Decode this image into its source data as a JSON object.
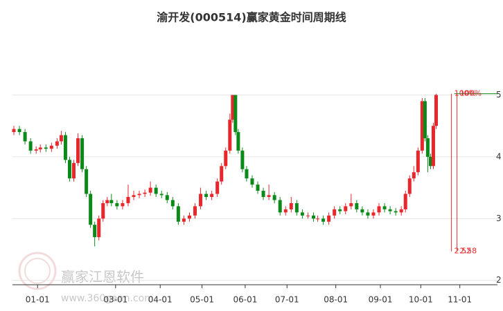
{
  "chart_data": {
    "type": "candlestick",
    "title": "渝开发(000514)赢家黄金时间周期线",
    "watermark": {
      "name": "赢家江恩软件",
      "url": "www.360gann.com"
    },
    "up_color": "#e8262b",
    "down_color": "#0b8a1a",
    "xlim": [
      -18,
      330
    ],
    "ylim": [
      1.93,
      6.0
    ],
    "xticks": [
      {
        "value": 0,
        "label": "01-01"
      },
      {
        "value": 56,
        "label": "03-01"
      },
      {
        "value": 88,
        "label": "04-01"
      },
      {
        "value": 118,
        "label": "05-01"
      },
      {
        "value": 149,
        "label": "06-01"
      },
      {
        "value": 179,
        "label": "07-01"
      },
      {
        "value": 214,
        "label": "08-01"
      },
      {
        "value": 246,
        "label": "09-01"
      },
      {
        "value": 275,
        "label": "10-01"
      },
      {
        "value": 303,
        "label": "11-01"
      }
    ],
    "yticks": [
      2,
      3,
      4,
      5
    ],
    "grid": true,
    "x": [
      -17,
      -13,
      -9,
      -5,
      -1,
      2,
      6,
      10,
      14,
      17,
      20,
      23,
      26,
      29,
      32,
      35,
      38,
      41,
      44,
      47,
      50,
      53,
      57,
      61,
      65,
      69,
      73,
      77,
      81,
      85,
      89,
      93,
      97,
      101,
      105,
      109,
      113,
      117,
      121,
      125,
      129,
      132,
      135,
      138,
      140,
      142,
      144,
      147,
      150,
      154,
      158,
      162,
      166,
      170,
      174,
      178,
      182,
      186,
      190,
      194,
      198,
      201,
      205,
      209,
      213,
      217,
      221,
      225,
      229,
      233,
      237,
      241,
      245,
      249,
      253,
      257,
      261,
      264,
      267,
      270,
      273,
      276,
      278,
      280,
      282,
      284,
      286
    ],
    "open": [
      4.4,
      4.45,
      4.4,
      4.25,
      4.1,
      4.12,
      4.15,
      4.13,
      4.18,
      4.25,
      4.35,
      3.95,
      3.65,
      3.9,
      4.3,
      3.8,
      3.4,
      2.9,
      2.7,
      3.0,
      3.25,
      3.3,
      3.25,
      3.2,
      3.25,
      3.35,
      3.38,
      3.4,
      3.42,
      3.5,
      3.4,
      3.38,
      3.3,
      3.2,
      2.95,
      3.0,
      3.05,
      3.2,
      3.4,
      3.35,
      3.4,
      3.6,
      3.85,
      4.1,
      4.6,
      5.0,
      4.4,
      4.1,
      3.8,
      3.65,
      3.55,
      3.45,
      3.35,
      3.38,
      3.3,
      3.1,
      3.15,
      3.25,
      3.1,
      3.05,
      3.05,
      3.0,
      3.0,
      2.95,
      3.05,
      3.15,
      3.12,
      3.2,
      3.25,
      3.15,
      3.1,
      3.05,
      3.1,
      3.2,
      3.15,
      3.12,
      3.1,
      3.15,
      3.4,
      3.65,
      3.75,
      4.1,
      4.9,
      4.3,
      4.0,
      3.85,
      4.5
    ],
    "high": [
      4.5,
      4.5,
      4.45,
      4.3,
      4.17,
      4.2,
      4.2,
      4.23,
      4.3,
      4.42,
      4.4,
      4.0,
      3.95,
      4.38,
      4.35,
      3.85,
      3.45,
      2.95,
      3.05,
      3.3,
      3.35,
      3.4,
      3.3,
      3.3,
      3.55,
      3.45,
      3.45,
      3.47,
      3.6,
      3.55,
      3.45,
      3.43,
      3.35,
      3.25,
      3.05,
      3.1,
      3.25,
      3.5,
      3.45,
      3.45,
      3.65,
      3.9,
      4.15,
      4.7,
      5.0,
      5.0,
      4.45,
      4.15,
      3.85,
      3.7,
      3.6,
      3.5,
      3.55,
      3.43,
      3.35,
      3.2,
      3.35,
      3.3,
      3.15,
      3.1,
      3.1,
      3.05,
      3.05,
      3.1,
      3.2,
      3.2,
      3.25,
      3.4,
      3.3,
      3.2,
      3.15,
      3.15,
      3.25,
      3.25,
      3.2,
      3.17,
      3.2,
      3.45,
      3.7,
      3.85,
      4.15,
      4.95,
      4.95,
      4.35,
      4.05,
      4.55,
      5.02
    ],
    "low": [
      4.35,
      4.35,
      4.2,
      4.05,
      4.05,
      4.07,
      4.08,
      4.08,
      4.13,
      4.2,
      3.9,
      3.6,
      3.6,
      3.85,
      3.75,
      3.35,
      2.85,
      2.55,
      2.65,
      2.95,
      3.2,
      3.2,
      3.15,
      3.15,
      3.2,
      3.3,
      3.33,
      3.35,
      3.37,
      3.35,
      3.33,
      3.25,
      3.15,
      2.9,
      2.9,
      2.95,
      3.0,
      3.15,
      3.3,
      3.3,
      3.35,
      3.55,
      3.8,
      4.05,
      4.55,
      4.35,
      4.05,
      3.75,
      3.6,
      3.5,
      3.4,
      3.3,
      3.3,
      3.25,
      3.05,
      3.05,
      3.1,
      3.05,
      3.0,
      3.0,
      2.95,
      2.95,
      2.9,
      2.9,
      3.0,
      3.07,
      3.07,
      3.15,
      3.1,
      3.05,
      3.0,
      3.0,
      3.05,
      3.1,
      3.07,
      3.05,
      3.05,
      3.1,
      3.35,
      3.6,
      3.7,
      4.05,
      4.25,
      3.75,
      3.8,
      3.8,
      4.45
    ],
    "close": [
      4.45,
      4.4,
      4.25,
      4.1,
      4.12,
      4.15,
      4.13,
      4.18,
      4.25,
      4.35,
      3.95,
      3.65,
      3.9,
      4.3,
      3.8,
      3.4,
      2.9,
      2.7,
      3.0,
      3.25,
      3.3,
      3.25,
      3.2,
      3.25,
      3.35,
      3.38,
      3.4,
      3.42,
      3.5,
      3.4,
      3.38,
      3.3,
      3.2,
      2.95,
      3.0,
      3.05,
      3.2,
      3.4,
      3.35,
      3.4,
      3.6,
      3.85,
      4.1,
      4.6,
      5.0,
      4.4,
      4.1,
      3.8,
      3.65,
      3.55,
      3.45,
      3.35,
      3.38,
      3.3,
      3.1,
      3.15,
      3.25,
      3.1,
      3.05,
      3.05,
      3.0,
      3.0,
      2.95,
      3.05,
      3.15,
      3.12,
      3.2,
      3.25,
      3.15,
      3.1,
      3.05,
      3.1,
      3.2,
      3.15,
      3.12,
      3.1,
      3.15,
      3.4,
      3.65,
      3.75,
      4.1,
      4.9,
      4.3,
      4.0,
      3.85,
      4.5,
      5.0
    ],
    "level_line": {
      "value": 5.02,
      "color": "#0b8a1a"
    },
    "time_lines": [
      {
        "x": 297,
        "bottom": 2.47,
        "top_label": "100%",
        "bottom_label": "2.52"
      },
      {
        "x": 301,
        "bottom": 2.47,
        "top_label": "100%",
        "bottom_label": "2.58"
      }
    ],
    "time_line_color": "#e8262b"
  }
}
